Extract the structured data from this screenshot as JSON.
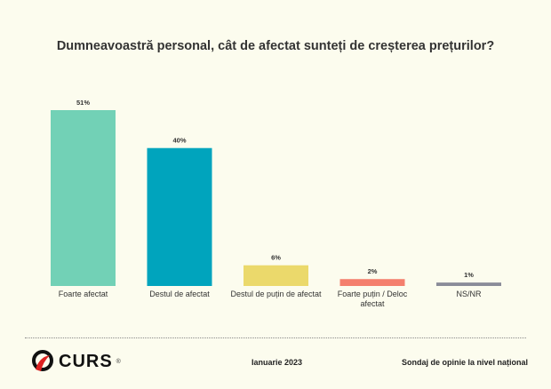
{
  "chart_data": {
    "type": "bar",
    "title": "Dumneavoastră personal, cât de afectat sunteți de creșterea prețurilor?",
    "categories": [
      "Foarte afectat",
      "Destul de afectat",
      "Destul de puțin de afectat",
      "Foarte puțin / Deloc afectat",
      "NS/NR"
    ],
    "values": [
      51,
      40,
      6,
      2,
      1
    ],
    "data_labels": [
      "51%",
      "40%",
      "6%",
      "2%",
      "1%"
    ],
    "colors": [
      "#72d1b6",
      "#00a4bd",
      "#ebd96b",
      "#f47f6d",
      "#8a8c99"
    ],
    "xlabel": "",
    "ylabel": "",
    "ylim": [
      0,
      51
    ],
    "grid": false
  },
  "footer": {
    "logo": "CURS",
    "registered": "®",
    "date": "Ianuarie 2023",
    "source": "Sondaj de opinie la nivel național"
  }
}
